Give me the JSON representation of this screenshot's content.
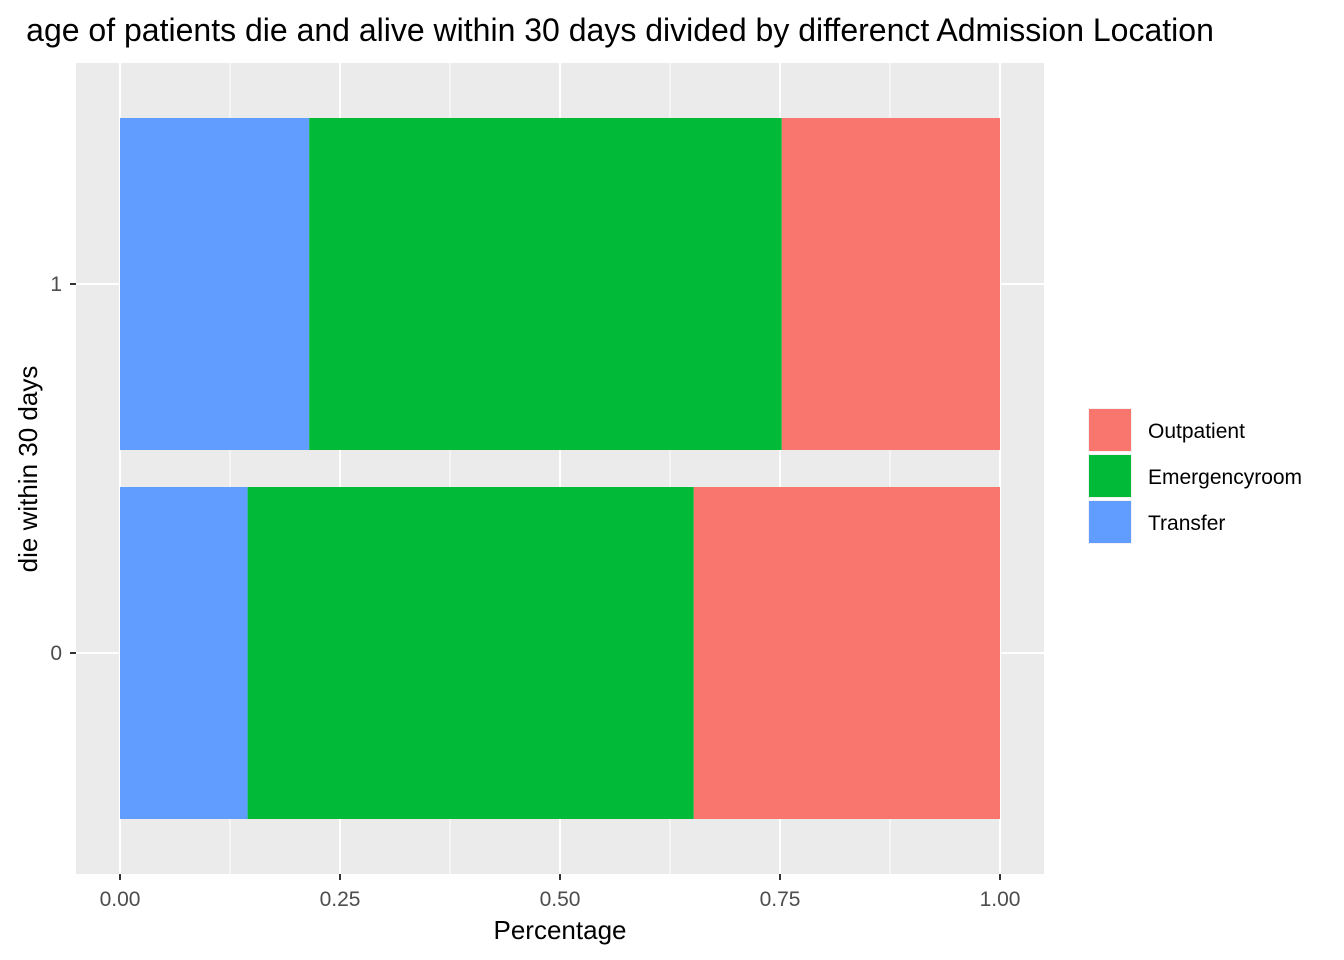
{
  "chart_data": {
    "type": "bar",
    "orientation": "horizontal",
    "stacked": true,
    "title": "age of patients die and alive within 30 days divided by differenct Admission Location",
    "xlabel": "Percentage",
    "ylabel": "die within 30 days",
    "xlim": [
      0,
      1
    ],
    "x_ticks": [
      "0.00",
      "0.25",
      "0.50",
      "0.75",
      "1.00"
    ],
    "x_tick_values": [
      0,
      0.25,
      0.5,
      0.75,
      1.0
    ],
    "categories": [
      "0",
      "1"
    ],
    "stack_order": [
      "Transfer",
      "Emergencyroom",
      "Outpatient"
    ],
    "series": [
      {
        "name": "Outpatient",
        "color": "#F8766D",
        "values": [
          0.348,
          0.248
        ]
      },
      {
        "name": "Emergencyroom",
        "color": "#00BA38",
        "values": [
          0.507,
          0.537
        ]
      },
      {
        "name": "Transfer",
        "color": "#619CFF",
        "values": [
          0.145,
          0.215
        ]
      }
    ],
    "legend": {
      "placement": "right",
      "entries": [
        "Outpatient",
        "Emergencyroom",
        "Transfer"
      ]
    },
    "grid": true,
    "panel_background": "#EBEBEB",
    "grid_color": "#FFFFFF"
  }
}
